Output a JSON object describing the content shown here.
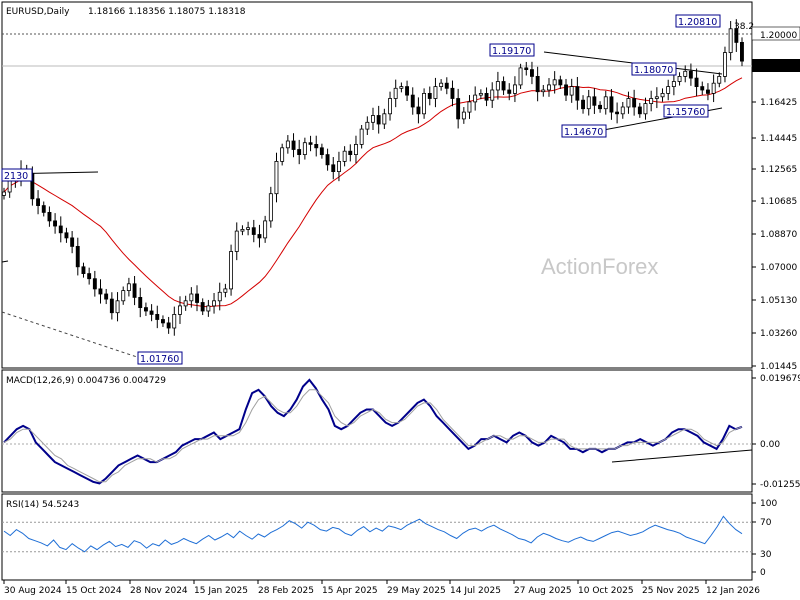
{
  "header": {
    "symbol": "EURUSD,Daily",
    "ohlc": "1.18166 1.18356 1.18075 1.18318"
  },
  "watermark": "ActionForex",
  "colors": {
    "candle": "#000000",
    "ma": "#d40000",
    "macd": "#00008b",
    "signal": "#a0a0a0",
    "rsi": "#1f6fd6",
    "box_text": "#00008b",
    "current_price_bg": "#000000",
    "current_price_text": "#ffffff",
    "panel_border": "#000000",
    "dotted_level": "#888888"
  },
  "chart_data": [
    {
      "type": "candlestick",
      "panel": "price",
      "title": "EURUSD,Daily",
      "ylim": [
        1.0048,
        1.2154
      ],
      "price_ticks": [
        "1.20000",
        "1.18318",
        "1.16425",
        "1.14445",
        "1.12565",
        "1.10685",
        "1.08870",
        "1.07000",
        "1.05130",
        "1.03260",
        "1.01445"
      ],
      "current_price": "1.18318",
      "x_ticks": [
        "30 Aug 2024",
        "15 Oct 2024",
        "28 Nov 2024",
        "15 Jan 2025",
        "28 Feb 2025",
        "15 Apr 2025",
        "29 May 2025",
        "14 Jul 2025",
        "27 Aug 2025",
        "10 Oct 2025",
        "25 Nov 2025",
        "12 Jan 2026"
      ],
      "close": [
        1.106,
        1.113,
        1.115,
        1.119,
        1.117,
        1.102,
        1.098,
        1.094,
        1.089,
        1.086,
        1.082,
        1.079,
        1.074,
        1.062,
        1.058,
        1.055,
        1.049,
        1.046,
        1.043,
        1.035,
        1.042,
        1.048,
        1.052,
        1.044,
        1.038,
        1.036,
        1.034,
        1.031,
        1.029,
        1.026,
        1.034,
        1.039,
        1.042,
        1.046,
        1.041,
        1.036,
        1.039,
        1.042,
        1.047,
        1.049,
        1.071,
        1.083,
        1.084,
        1.085,
        1.081,
        1.079,
        1.089,
        1.105,
        1.124,
        1.132,
        1.136,
        1.131,
        1.128,
        1.135,
        1.134,
        1.132,
        1.128,
        1.122,
        1.118,
        1.124,
        1.13,
        1.128,
        1.134,
        1.143,
        1.147,
        1.151,
        1.146,
        1.152,
        1.161,
        1.167,
        1.168,
        1.163,
        1.156,
        1.152,
        1.164,
        1.161,
        1.168,
        1.17,
        1.167,
        1.161,
        1.149,
        1.153,
        1.159,
        1.163,
        1.164,
        1.16,
        1.166,
        1.171,
        1.166,
        1.164,
        1.169,
        1.179,
        1.178,
        1.174,
        1.165,
        1.166,
        1.169,
        1.172,
        1.169,
        1.163,
        1.168,
        1.16,
        1.155,
        1.162,
        1.157,
        1.155,
        1.162,
        1.153,
        1.152,
        1.156,
        1.161,
        1.156,
        1.152,
        1.158,
        1.161,
        1.162,
        1.164,
        1.168,
        1.171,
        1.174,
        1.177,
        1.173,
        1.168,
        1.166,
        1.164,
        1.17,
        1.174,
        1.188,
        1.202,
        1.194,
        1.183
      ],
      "annotations": [
        "2130",
        "1.01760",
        "1.19170",
        "1.18070",
        "1.14670",
        "1.15760",
        "1.20810",
        "1.20000",
        "38.2"
      ],
      "moving_average": "red line"
    },
    {
      "type": "line",
      "panel": "macd",
      "title": "MACD(12,26,9) 0.004736 0.004729",
      "ylim": [
        -0.0145,
        0.0208
      ],
      "y_ticks": [
        "0.019679",
        "0.00",
        "-0.012552"
      ],
      "series": [
        {
          "name": "MACD",
          "values": [
            0.0,
            0.002,
            0.004,
            0.005,
            0.004,
            0.0,
            -0.002,
            -0.004,
            -0.006,
            -0.007,
            -0.008,
            -0.009,
            -0.01,
            -0.011,
            -0.012,
            -0.0125,
            -0.011,
            -0.009,
            -0.007,
            -0.006,
            -0.005,
            -0.004,
            -0.005,
            -0.006,
            -0.006,
            -0.005,
            -0.004,
            -0.003,
            -0.001,
            0.0,
            0.001,
            0.001,
            0.002,
            0.003,
            0.001,
            0.002,
            0.003,
            0.004,
            0.01,
            0.015,
            0.016,
            0.014,
            0.011,
            0.009,
            0.008,
            0.01,
            0.013,
            0.017,
            0.019,
            0.0165,
            0.013,
            0.01,
            0.005,
            0.004,
            0.005,
            0.007,
            0.009,
            0.01,
            0.01,
            0.008,
            0.006,
            0.005,
            0.006,
            0.008,
            0.01,
            0.012,
            0.013,
            0.011,
            0.008,
            0.006,
            0.004,
            0.002,
            0.0,
            -0.002,
            -0.001,
            0.001,
            0.001,
            0.002,
            0.001,
            0.0,
            0.002,
            0.003,
            0.002,
            0.0,
            -0.001,
            0.0,
            0.002,
            0.001,
            0.0,
            -0.002,
            -0.002,
            -0.003,
            -0.002,
            -0.002,
            -0.003,
            -0.002,
            -0.002,
            -0.001,
            0.0,
            0.0,
            0.001,
            0.0,
            -0.001,
            0.0,
            0.001,
            0.003,
            0.004,
            0.004,
            0.003,
            0.002,
            0.0,
            -0.001,
            -0.002,
            0.001,
            0.005,
            0.004,
            0.004736
          ]
        },
        {
          "name": "Signal",
          "values": [
            0.0,
            0.001,
            0.003,
            0.004,
            0.004,
            0.002,
            0.0,
            -0.002,
            -0.004,
            -0.005,
            -0.007,
            -0.008,
            -0.009,
            -0.01,
            -0.011,
            -0.012,
            -0.012,
            -0.01,
            -0.009,
            -0.007,
            -0.006,
            -0.005,
            -0.005,
            -0.005,
            -0.006,
            -0.005,
            -0.005,
            -0.004,
            -0.002,
            -0.001,
            0.0,
            0.001,
            0.001,
            0.002,
            0.002,
            0.002,
            0.002,
            0.003,
            0.006,
            0.01,
            0.013,
            0.014,
            0.012,
            0.01,
            0.009,
            0.009,
            0.011,
            0.014,
            0.016,
            0.016,
            0.014,
            0.012,
            0.008,
            0.006,
            0.005,
            0.006,
            0.008,
            0.009,
            0.01,
            0.009,
            0.007,
            0.006,
            0.006,
            0.007,
            0.009,
            0.011,
            0.012,
            0.012,
            0.01,
            0.007,
            0.005,
            0.003,
            0.001,
            -0.001,
            -0.001,
            0.0,
            0.001,
            0.002,
            0.002,
            0.001,
            0.001,
            0.002,
            0.002,
            0.001,
            0.0,
            0.0,
            0.001,
            0.001,
            0.001,
            -0.001,
            -0.002,
            -0.002,
            -0.002,
            -0.002,
            -0.002,
            -0.002,
            -0.002,
            -0.001,
            -0.001,
            0.0,
            0.0,
            0.0,
            0.0,
            0.0,
            0.001,
            0.002,
            0.003,
            0.004,
            0.004,
            0.003,
            0.001,
            0.0,
            -0.001,
            0.0,
            0.003,
            0.004,
            0.004729
          ]
        }
      ]
    },
    {
      "type": "line",
      "panel": "rsi",
      "title": "RSI(14) 54.5243",
      "ylim": [
        0,
        100
      ],
      "y_ticks": [
        "100",
        "70",
        "30",
        "0"
      ],
      "levels": [
        70,
        30
      ],
      "series": [
        {
          "name": "RSI(14)",
          "values": [
            58,
            52,
            60,
            55,
            48,
            45,
            42,
            38,
            46,
            36,
            33,
            41,
            35,
            30,
            38,
            33,
            39,
            44,
            37,
            40,
            36,
            45,
            42,
            35,
            41,
            38,
            46,
            40,
            43,
            48,
            44,
            41,
            47,
            52,
            46,
            50,
            55,
            49,
            58,
            52,
            47,
            54,
            50,
            56,
            60,
            65,
            72,
            68,
            62,
            70,
            66,
            60,
            58,
            63,
            61,
            55,
            52,
            59,
            64,
            57,
            62,
            58,
            65,
            63,
            60,
            66,
            70,
            74,
            68,
            64,
            60,
            57,
            52,
            48,
            55,
            60,
            62,
            58,
            63,
            66,
            61,
            57,
            53,
            48,
            46,
            42,
            50,
            55,
            52,
            48,
            45,
            43,
            47,
            50,
            46,
            44,
            48,
            52,
            56,
            58,
            55,
            52,
            54,
            57,
            62,
            66,
            63,
            60,
            58,
            55,
            50,
            47,
            44,
            41,
            52,
            64,
            78,
            68,
            60,
            54.5
          ]
        }
      ]
    }
  ]
}
